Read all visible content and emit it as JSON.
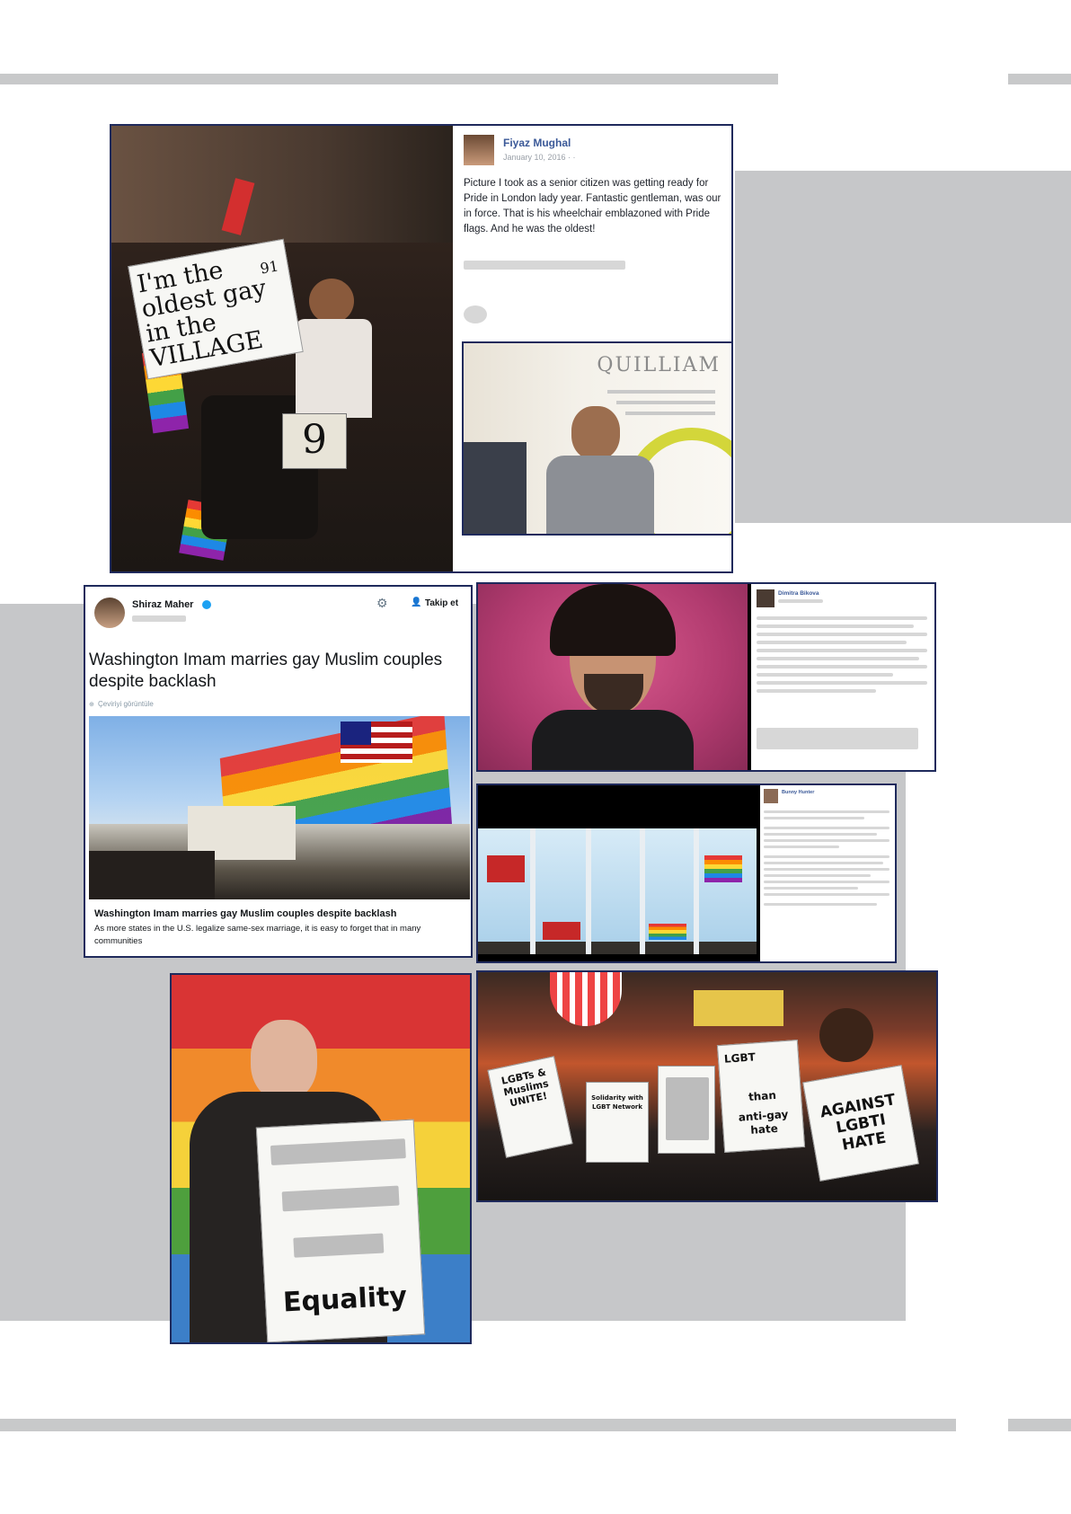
{
  "post_mughal": {
    "author": "Fiyaz Mughal",
    "date": "January 10, 2016 · ·",
    "text": "Picture I took as a senior citizen was getting ready for Pride in London lady year. Fantastic gentleman, was our in force. That is his wheelchair emblazoned with Pride flags. And he was the oldest!",
    "sign_text": "I'm the oldest gay in the VILLAGE",
    "sign_number": "91",
    "box_number": "9",
    "quilliam_logo": "QUILLIAM"
  },
  "tweet_maher": {
    "author": "Shiraz Maher",
    "follow_label": "Takip et",
    "headline": "Washington Imam marries gay Muslim couples despite backlash",
    "translate_label": "Çeviriyi görüntüle",
    "card_title": "Washington Imam marries gay Muslim couples despite backlash",
    "card_desc": "As more states in the U.S. legalize same-sex marriage, it is easy to forget that in many communities"
  },
  "post_bikova": {
    "author": "Dimitra Bikova"
  },
  "post_hunter": {
    "author": "Bunny Hunter"
  },
  "signs": {
    "equality": "Equality",
    "muslims_unite": "LGBTs & Muslims UNITE!",
    "solidarity": "Solidarity with LGBT Network",
    "antigay": "anti-gay hate",
    "against": "AGAINST LGBTI HATE",
    "lgbt": "LGBT",
    "than": "than"
  },
  "colors": {
    "frame": "#1f2a5c",
    "panel": "#c6c7c9",
    "link": "#3b5998"
  },
  "icons": [
    "avatar",
    "gear-icon",
    "follow-icon",
    "globe-icon",
    "verified-icon"
  ]
}
